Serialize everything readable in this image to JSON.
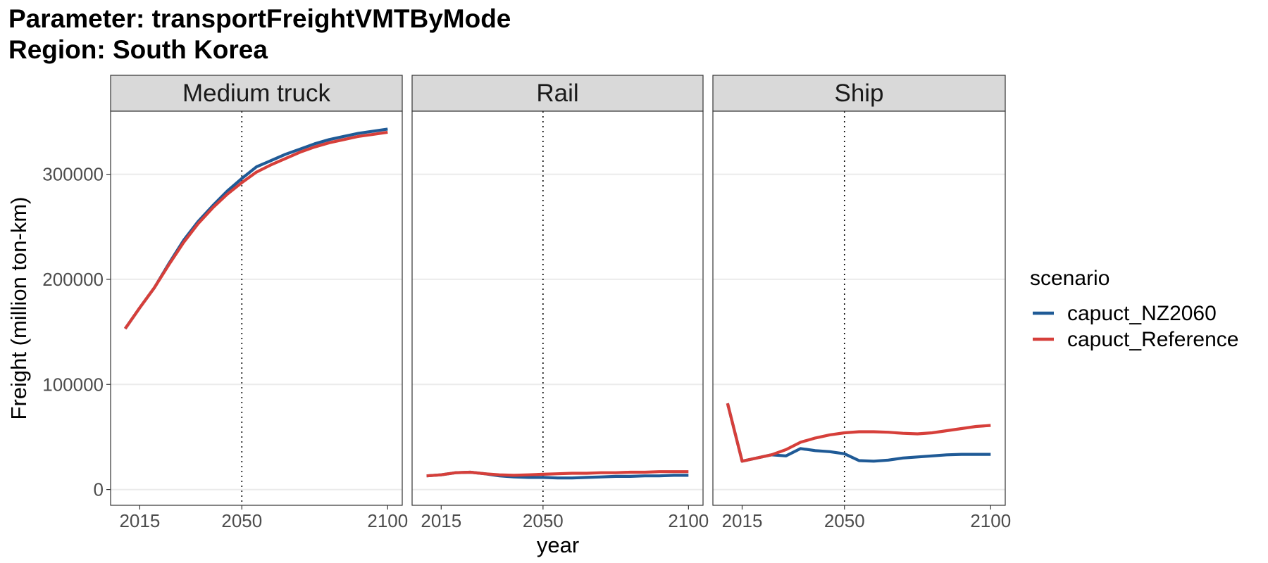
{
  "title_line1": "Parameter: transportFreightVMTByMode",
  "title_line2": "Region: South Korea",
  "chart_data": {
    "type": "line",
    "xlabel": "year",
    "ylabel": "Freight (million ton-km)",
    "x_ticks": [
      "2015",
      "2050",
      "2100"
    ],
    "y_ticks": [
      "0",
      "100000",
      "200000",
      "300000"
    ],
    "xlim": [
      2005,
      2105
    ],
    "ylim": [
      -15000,
      360000
    ],
    "reference_line_x": 2050,
    "grid": true,
    "legend": {
      "title": "scenario",
      "position": "right",
      "entries": [
        "capuct_NZ2060",
        "capuct_Reference"
      ]
    },
    "colors": {
      "capuct_NZ2060": "#1f5a96",
      "capuct_Reference": "#d63f3a"
    },
    "panels": [
      {
        "name": "Medium truck",
        "series": [
          {
            "name": "capuct_NZ2060",
            "x": [
              2010,
              2015,
              2020,
              2025,
              2030,
              2035,
              2040,
              2045,
              2050,
              2055,
              2060,
              2065,
              2070,
              2075,
              2080,
              2085,
              2090,
              2095,
              2100
            ],
            "y": [
              153000,
              173000,
              192000,
              215000,
              237000,
              255000,
              270000,
              284000,
              296000,
              307000,
              313000,
              319000,
              324000,
              329000,
              333000,
              336000,
              339000,
              341000,
              343000
            ]
          },
          {
            "name": "capuct_Reference",
            "x": [
              2010,
              2015,
              2020,
              2025,
              2030,
              2035,
              2040,
              2045,
              2050,
              2055,
              2060,
              2065,
              2070,
              2075,
              2080,
              2085,
              2090,
              2095,
              2100
            ],
            "y": [
              153000,
              173000,
              192000,
              214000,
              235000,
              253000,
              268000,
              281000,
              292000,
              302000,
              309000,
              315000,
              321000,
              326000,
              330000,
              333000,
              336000,
              338000,
              340000
            ]
          }
        ]
      },
      {
        "name": "Rail",
        "series": [
          {
            "name": "capuct_NZ2060",
            "x": [
              2010,
              2015,
              2020,
              2025,
              2030,
              2035,
              2040,
              2045,
              2050,
              2055,
              2060,
              2065,
              2070,
              2075,
              2080,
              2085,
              2090,
              2095,
              2100
            ],
            "y": [
              13000,
              14000,
              16000,
              16500,
              15000,
              13000,
              12000,
              11500,
              11500,
              11000,
              11000,
              11500,
              12000,
              12500,
              12500,
              13000,
              13000,
              13500,
              13500
            ]
          },
          {
            "name": "capuct_Reference",
            "x": [
              2010,
              2015,
              2020,
              2025,
              2030,
              2035,
              2040,
              2045,
              2050,
              2055,
              2060,
              2065,
              2070,
              2075,
              2080,
              2085,
              2090,
              2095,
              2100
            ],
            "y": [
              13000,
              14000,
              16000,
              16500,
              15000,
              14000,
              13500,
              14000,
              14500,
              15000,
              15500,
              15500,
              16000,
              16000,
              16500,
              16500,
              17000,
              17000,
              17000
            ]
          }
        ]
      },
      {
        "name": "Ship",
        "series": [
          {
            "name": "capuct_NZ2060",
            "x": [
              2010,
              2015,
              2020,
              2025,
              2030,
              2035,
              2040,
              2045,
              2050,
              2055,
              2060,
              2065,
              2070,
              2075,
              2080,
              2085,
              2090,
              2095,
              2100
            ],
            "y": [
              82000,
              27000,
              30000,
              33000,
              32000,
              39000,
              37000,
              36000,
              34000,
              27500,
              27000,
              28000,
              30000,
              31000,
              32000,
              33000,
              33500,
              33500,
              33500
            ]
          },
          {
            "name": "capuct_Reference",
            "x": [
              2010,
              2015,
              2020,
              2025,
              2030,
              2035,
              2040,
              2045,
              2050,
              2055,
              2060,
              2065,
              2070,
              2075,
              2080,
              2085,
              2090,
              2095,
              2100
            ],
            "y": [
              82000,
              27000,
              30000,
              33000,
              38000,
              45000,
              49000,
              52000,
              54000,
              55000,
              55000,
              54500,
              53500,
              53000,
              54000,
              56000,
              58000,
              60000,
              61000
            ]
          }
        ]
      }
    ]
  }
}
